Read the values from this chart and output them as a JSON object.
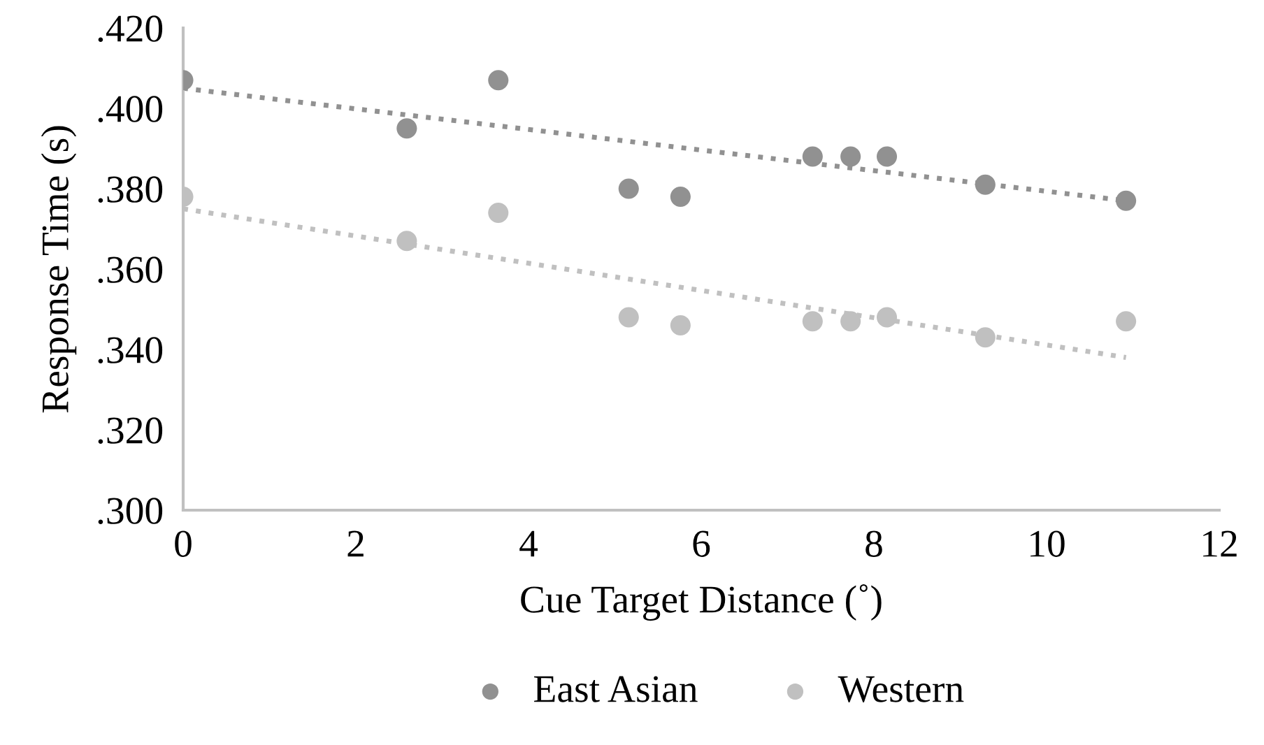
{
  "chart_data": {
    "type": "scatter",
    "xlabel": "Cue Target Distance (˚)",
    "ylabel": "Response Time (s)",
    "xlim": [
      0,
      12
    ],
    "xticks": [
      0,
      2,
      4,
      6,
      8,
      10,
      12
    ],
    "ylim": [
      0.3,
      0.42
    ],
    "yticks": [
      {
        "value": 0.3,
        "label": ".300"
      },
      {
        "value": 0.32,
        "label": ".320"
      },
      {
        "value": 0.34,
        "label": ".340"
      },
      {
        "value": 0.36,
        "label": ".360"
      },
      {
        "value": 0.38,
        "label": ".380"
      },
      {
        "value": 0.4,
        "label": ".400"
      },
      {
        "value": 0.42,
        "label": ".420"
      }
    ],
    "grid": false,
    "legend": "bottom",
    "marker": "circle",
    "series": [
      {
        "name": "East Asian",
        "color": "#919191",
        "x": [
          0,
          2.59,
          3.65,
          5.16,
          5.76,
          7.29,
          7.73,
          8.15,
          9.29,
          10.92
        ],
        "values": [
          0.407,
          0.395,
          0.407,
          0.38,
          0.378,
          0.388,
          0.388,
          0.388,
          0.381,
          0.377
        ]
      },
      {
        "name": "Western",
        "color": "#c0c0c0",
        "x": [
          0,
          2.59,
          3.65,
          5.16,
          5.76,
          7.29,
          7.73,
          8.15,
          9.29,
          10.92
        ],
        "values": [
          0.378,
          0.367,
          0.374,
          0.348,
          0.346,
          0.347,
          0.347,
          0.348,
          0.343,
          0.347
        ]
      },
      {
        "type": "line",
        "color": "#919191",
        "marker": "none",
        "line_style": "dotted",
        "x": [
          0,
          10.92
        ],
        "values": [
          0.405,
          0.377
        ]
      },
      {
        "type": "line",
        "color": "#c0c0c0",
        "marker": "none",
        "line_style": "dotted",
        "x": [
          0,
          10.92
        ],
        "values": [
          0.375,
          0.338
        ]
      }
    ]
  }
}
